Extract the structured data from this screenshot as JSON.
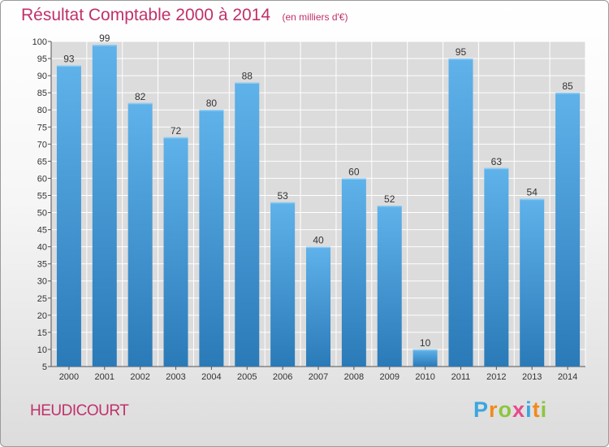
{
  "title": "Résultat Comptable 2000 à 2014",
  "subtitle": "(en milliers d'€)",
  "commune": "HEUDICOURT",
  "logo": {
    "letters": [
      "P",
      "r",
      "o",
      "x",
      "i",
      "t",
      "i"
    ],
    "colors": [
      "#3aa6e0",
      "#f08a1c",
      "#8cc63f",
      "#e64b8c",
      "#3aa6e0",
      "#f08a1c",
      "#8cc63f"
    ]
  },
  "colors": {
    "bar_top": "#5fb2ea",
    "bar_bottom": "#2a7ab8",
    "title": "#c0306a",
    "grid": "#ffffff"
  },
  "chart_data": {
    "type": "bar",
    "categories": [
      "2000",
      "2001",
      "2002",
      "2003",
      "2004",
      "2005",
      "2006",
      "2007",
      "2008",
      "2009",
      "2010",
      "2011",
      "2012",
      "2013",
      "2014"
    ],
    "values": [
      93,
      99,
      82,
      72,
      80,
      88,
      53,
      40,
      60,
      52,
      10,
      95,
      63,
      54,
      85
    ],
    "yticks": [
      5,
      10,
      15,
      20,
      25,
      30,
      35,
      40,
      45,
      50,
      55,
      60,
      65,
      70,
      75,
      80,
      85,
      90,
      95,
      100
    ],
    "ylim": [
      5,
      100
    ],
    "grid": true,
    "data_labels": true
  }
}
